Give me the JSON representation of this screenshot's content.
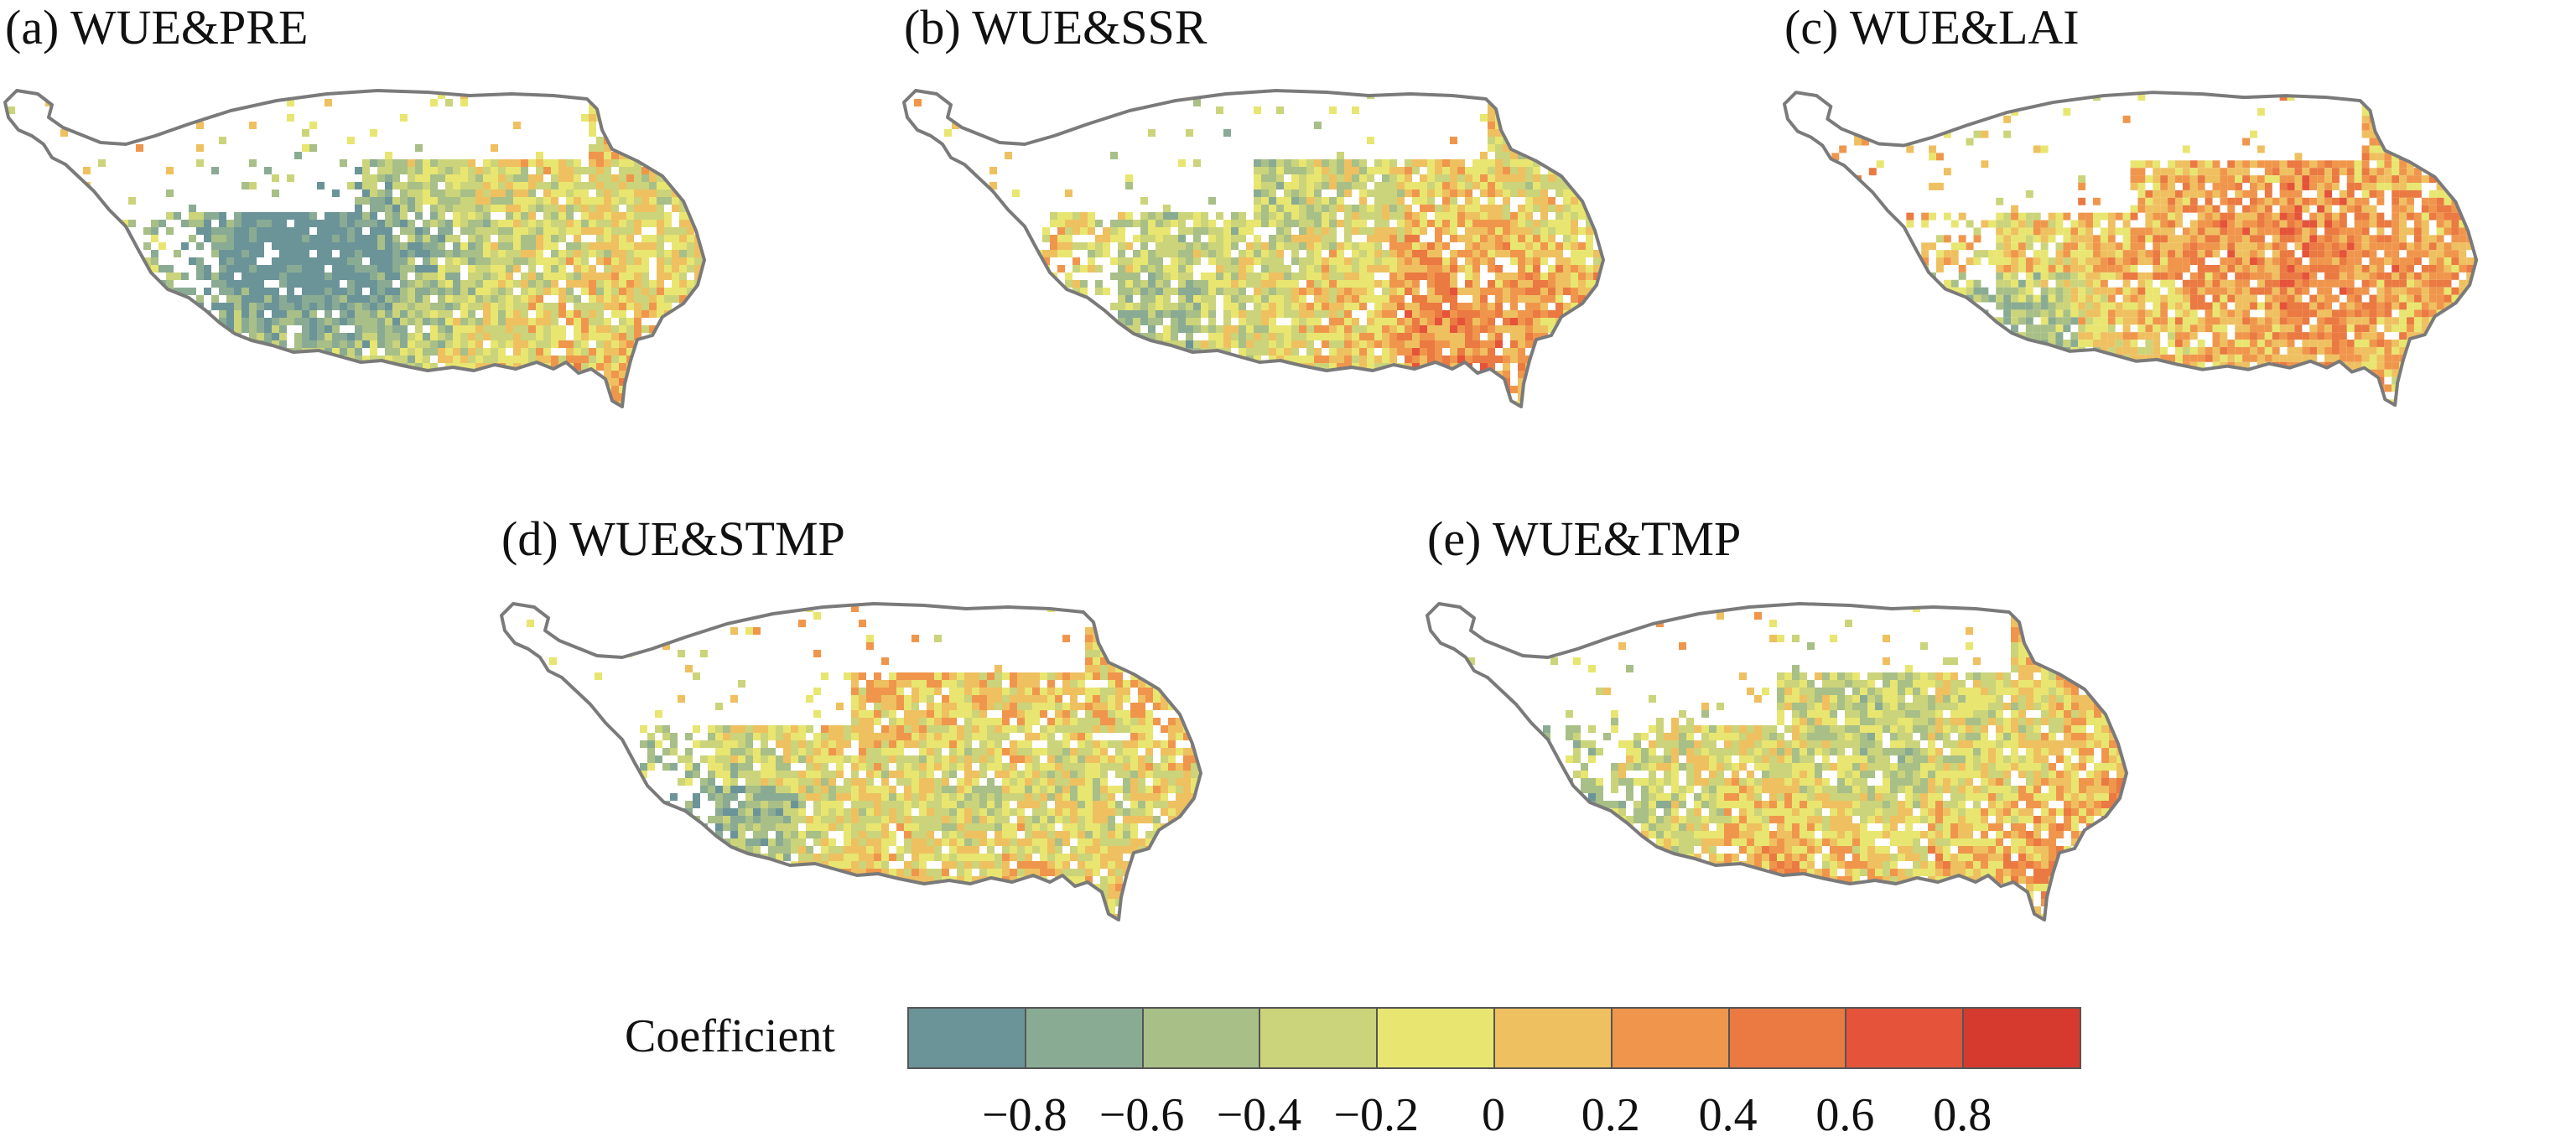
{
  "panels": [
    {
      "id": "a",
      "title": "(a) WUE&PRE",
      "palette_bias": 0.05
    },
    {
      "id": "b",
      "title": "(b) WUE&SSR",
      "palette_bias": 0.45
    },
    {
      "id": "c",
      "title": "(c) WUE&LAI",
      "palette_bias": 0.55
    },
    {
      "id": "d",
      "title": "(d) WUE&STMP",
      "palette_bias": 0.45
    },
    {
      "id": "e",
      "title": "(e) WUE&TMP",
      "palette_bias": 0.45
    }
  ],
  "legend": {
    "title": "Coefficient",
    "colors": [
      "#6b9499",
      "#8aab93",
      "#a8bf87",
      "#cbd47a",
      "#e8e670",
      "#efc060",
      "#f0964c",
      "#ea7942",
      "#e4533a",
      "#d63a2f"
    ],
    "ticks": [
      "−0.8",
      "−0.6",
      "−0.4",
      "−0.2",
      "0",
      "0.2",
      "0.4",
      "0.6",
      "0.8"
    ]
  }
}
